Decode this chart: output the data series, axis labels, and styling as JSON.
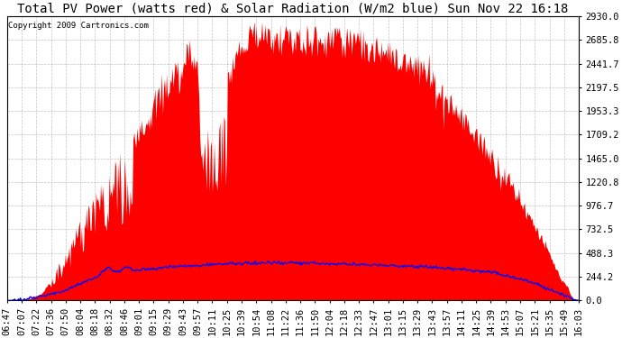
{
  "title": "Total PV Power (watts red) & Solar Radiation (W/m2 blue) Sun Nov 22 16:18",
  "copyright_text": "Copyright 2009 Cartronics.com",
  "y_max": 2930.0,
  "y_min": 0.0,
  "y_ticks": [
    0.0,
    244.2,
    488.3,
    732.5,
    976.7,
    1220.8,
    1465.0,
    1709.2,
    1953.3,
    2197.5,
    2441.7,
    2685.8,
    2930.0
  ],
  "x_labels": [
    "06:47",
    "07:07",
    "07:22",
    "07:36",
    "07:50",
    "08:04",
    "08:18",
    "08:32",
    "08:46",
    "09:01",
    "09:15",
    "09:29",
    "09:43",
    "09:57",
    "10:11",
    "10:25",
    "10:39",
    "10:54",
    "11:08",
    "11:22",
    "11:36",
    "11:50",
    "12:04",
    "12:18",
    "12:33",
    "12:47",
    "13:01",
    "13:15",
    "13:29",
    "13:43",
    "13:57",
    "14:11",
    "14:25",
    "14:39",
    "14:53",
    "15:07",
    "15:21",
    "15:35",
    "15:49",
    "16:03"
  ],
  "pv_color": "#FF0000",
  "solar_color": "#0000FF",
  "background_color": "#FFFFFF",
  "grid_color": "#AAAAAA",
  "title_fontsize": 10,
  "tick_fontsize": 7.5
}
